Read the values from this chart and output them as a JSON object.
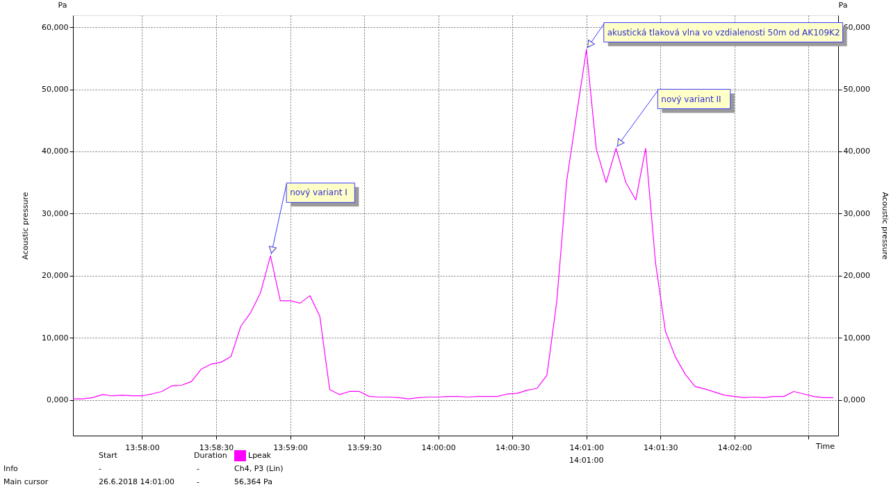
{
  "chart_data": {
    "type": "line",
    "xlabel": "Time",
    "ylabel": "Acoustic pressure",
    "y2label": "Acoustic pressure",
    "x": [
      "2018-06-26T13:57:32",
      "2018-06-26T13:57:36",
      "2018-06-26T13:57:40",
      "2018-06-26T13:57:44",
      "2018-06-26T13:57:48",
      "2018-06-26T13:57:52",
      "2018-06-26T13:57:56",
      "2018-06-26T13:58:00",
      "2018-06-26T13:58:04",
      "2018-06-26T13:58:08",
      "2018-06-26T13:58:12",
      "2018-06-26T13:58:16",
      "2018-06-26T13:58:20",
      "2018-06-26T13:58:24",
      "2018-06-26T13:58:28",
      "2018-06-26T13:58:32",
      "2018-06-26T13:58:36",
      "2018-06-26T13:58:40",
      "2018-06-26T13:58:44",
      "2018-06-26T13:58:48",
      "2018-06-26T13:58:52",
      "2018-06-26T13:58:56",
      "2018-06-26T13:59:00",
      "2018-06-26T13:59:04",
      "2018-06-26T13:59:08",
      "2018-06-26T13:59:12",
      "2018-06-26T13:59:16",
      "2018-06-26T13:59:20",
      "2018-06-26T13:59:24",
      "2018-06-26T13:59:28",
      "2018-06-26T13:59:32",
      "2018-06-26T13:59:36",
      "2018-06-26T13:59:40",
      "2018-06-26T13:59:44",
      "2018-06-26T13:59:48",
      "2018-06-26T13:59:52",
      "2018-06-26T13:59:56",
      "2018-06-26T14:00:00",
      "2018-06-26T14:00:04",
      "2018-06-26T14:00:08",
      "2018-06-26T14:00:12",
      "2018-06-26T14:00:16",
      "2018-06-26T14:00:20",
      "2018-06-26T14:00:24",
      "2018-06-26T14:00:28",
      "2018-06-26T14:00:32",
      "2018-06-26T14:00:36",
      "2018-06-26T14:00:40",
      "2018-06-26T14:00:44",
      "2018-06-26T14:00:48",
      "2018-06-26T14:00:52",
      "2018-06-26T14:00:56",
      "2018-06-26T14:01:00",
      "2018-06-26T14:01:04",
      "2018-06-26T14:01:08",
      "2018-06-26T14:01:12",
      "2018-06-26T14:01:16",
      "2018-06-26T14:01:20",
      "2018-06-26T14:01:24",
      "2018-06-26T14:01:28",
      "2018-06-26T14:01:32",
      "2018-06-26T14:01:36",
      "2018-06-26T14:01:40",
      "2018-06-26T14:01:44",
      "2018-06-26T14:01:48",
      "2018-06-26T14:01:52",
      "2018-06-26T14:01:56",
      "2018-06-26T14:02:00",
      "2018-06-26T14:02:04",
      "2018-06-26T14:02:08",
      "2018-06-26T14:02:12",
      "2018-06-26T14:02:16",
      "2018-06-26T14:02:20",
      "2018-06-26T14:02:24",
      "2018-06-26T14:02:28",
      "2018-06-26T14:02:32",
      "2018-06-26T14:02:36",
      "2018-06-26T14:02:40"
    ],
    "series": [
      {
        "name": "Lpeak",
        "color": "#ff00ff",
        "values": [
          0.2,
          0.2,
          0.4,
          0.9,
          0.7,
          0.8,
          0.7,
          0.7,
          1.0,
          1.4,
          2.3,
          2.4,
          3.0,
          5.0,
          5.8,
          6.1,
          7.0,
          11.9,
          14.1,
          17.3,
          23.2,
          16.0,
          16.0,
          15.6,
          16.8,
          13.5,
          1.7,
          0.9,
          1.4,
          1.4,
          0.6,
          0.5,
          0.5,
          0.4,
          0.2,
          0.4,
          0.5,
          0.5,
          0.6,
          0.6,
          0.5,
          0.6,
          0.6,
          0.6,
          1.0,
          1.1,
          1.6,
          1.9,
          4.0,
          15.9,
          35.2,
          45.9,
          56.364,
          40.4,
          35.0,
          40.5,
          35.0,
          32.2,
          40.5,
          22.1,
          11.1,
          7.0,
          4.2,
          2.2,
          1.8,
          1.3,
          0.8,
          0.6,
          0.4,
          0.5,
          0.4,
          0.6,
          0.6,
          1.4,
          1.0,
          0.6,
          0.4,
          0.4
        ]
      }
    ],
    "xlim": [
      "2018-06-26T13:57:32",
      "2018-06-26T14:02:42"
    ],
    "xticks": [
      {
        "value": "2018-06-26T13:58:00",
        "label": "13:58:00"
      },
      {
        "value": "2018-06-26T13:58:30",
        "label": "13:58:30"
      },
      {
        "value": "2018-06-26T13:59:00",
        "label": "13:59:00"
      },
      {
        "value": "2018-06-26T13:59:30",
        "label": "13:59:30"
      },
      {
        "value": "2018-06-26T14:00:00",
        "label": "14:00:00"
      },
      {
        "value": "2018-06-26T14:00:30",
        "label": "14:00:30"
      },
      {
        "value": "2018-06-26T14:01:00",
        "label": "14:01:00"
      },
      {
        "value": "2018-06-26T14:01:30",
        "label": "14:01:30"
      },
      {
        "value": "2018-06-26T14:02:00",
        "label": "14:02:00"
      },
      {
        "value": "2018-06-26T14:02:30",
        "label": null
      }
    ],
    "ylim": [
      -5.7,
      61.9
    ],
    "yticks": [
      {
        "value": 0,
        "label": "0,000"
      },
      {
        "value": 10,
        "label": "10,000"
      },
      {
        "value": 20,
        "label": "20,000"
      },
      {
        "value": 30,
        "label": "30,000"
      },
      {
        "value": 40,
        "label": "40,000"
      },
      {
        "value": 50,
        "label": "50,000"
      },
      {
        "value": 60,
        "label": "60,000"
      }
    ],
    "y2lim": [
      -5.7,
      61.9
    ],
    "y2ticks": [
      {
        "value": 0,
        "label": "0,000"
      },
      {
        "value": 10,
        "label": "10,000"
      },
      {
        "value": 20,
        "label": "20,000"
      },
      {
        "value": 30,
        "label": "30,000"
      },
      {
        "value": 40,
        "label": "40,000"
      },
      {
        "value": 50,
        "label": "50,000"
      },
      {
        "value": 60,
        "label": "60,000"
      }
    ],
    "annotations": [
      "14:01:00",
      {
        "text": "nový variant I",
        "x": "2018-06-26T13:58:52",
        "y": 23.2
      },
      {
        "text": "akustická tlaková vlna vo vzdialenosti 50m od AK109K2",
        "x": "2018-06-26T14:01:00",
        "y": 56.364
      },
      {
        "text": "nový variant II",
        "x": "2018-06-26T14:01:12",
        "y": 40.5
      },
      "Pa",
      "Pa",
      "Start",
      "Duration",
      "Info",
      "-",
      "-",
      "Ch4, P3 (Lin)",
      "Main cursor",
      "26.6.2018 14:01:00",
      "-",
      "56,364 Pa"
    ],
    "grid": true,
    "legend": "bottom",
    "marker": "none",
    "line_style": "solid"
  }
}
